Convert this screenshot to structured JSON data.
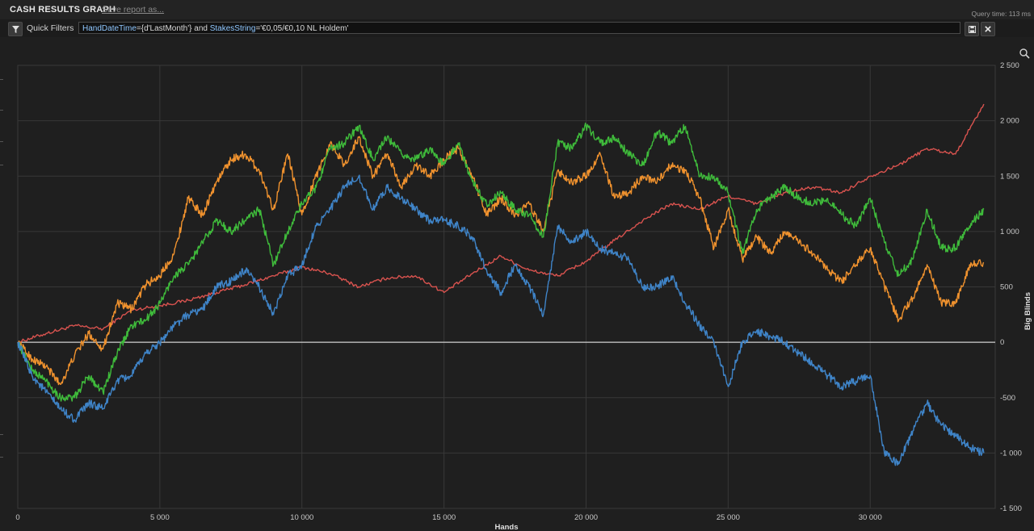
{
  "header": {
    "title": "CASH RESULTS GRAPH",
    "save_link": "Save report as...",
    "query_time": "Query time: 113 ms"
  },
  "filters": {
    "quick_filters_label": "Quick Filters",
    "query_key1": "HandDateTime",
    "query_val1": "={d'LastMonth'} and ",
    "query_key2": "StakesString",
    "query_val2": "='€0,05/€0,10 NL Holdem'",
    "save_icon": "save-icon",
    "clear_icon": "close-icon"
  },
  "chart_data": {
    "type": "line",
    "title": "",
    "xlabel": "Hands",
    "ylabel": "Big Blinds",
    "xlim": [
      0,
      34400
    ],
    "ylim": [
      -1500,
      2500
    ],
    "xticks": [
      0,
      5000,
      10000,
      15000,
      20000,
      25000,
      30000
    ],
    "xtick_labels": [
      "0",
      "5 000",
      "10 000",
      "15 000",
      "20 000",
      "25 000",
      "30 000"
    ],
    "yticks": [
      -1500,
      -1000,
      -500,
      0,
      500,
      1000,
      1500,
      2000,
      2500
    ],
    "ytick_labels": [
      "-1 500",
      "-1 000",
      "-500",
      "0",
      "500",
      "1 000",
      "1 500",
      "2 000",
      "2 500"
    ],
    "grid": true,
    "zero_line_color": "#d0d0d0",
    "series": [
      {
        "color": "#d9534f",
        "x": [
          0,
          1000,
          2000,
          3000,
          4000,
          5000,
          6000,
          7000,
          8000,
          9000,
          10000,
          11000,
          12000,
          13000,
          14000,
          15000,
          16000,
          17000,
          18000,
          19000,
          20000,
          21000,
          22000,
          23000,
          24000,
          25000,
          26000,
          27000,
          28000,
          29000,
          30000,
          31000,
          32000,
          33000,
          34000
        ],
        "y": [
          0,
          80,
          150,
          120,
          290,
          330,
          380,
          450,
          520,
          600,
          680,
          620,
          500,
          580,
          600,
          450,
          620,
          780,
          650,
          600,
          730,
          920,
          1100,
          1250,
          1200,
          1320,
          1250,
          1350,
          1400,
          1350,
          1500,
          1600,
          1750,
          1700,
          2150
        ]
      },
      {
        "color": "#f0922e",
        "x": [
          0,
          500,
          1000,
          1500,
          2000,
          2500,
          3000,
          3500,
          4000,
          4500,
          5000,
          5500,
          6000,
          6500,
          7000,
          7500,
          8000,
          8500,
          9000,
          9500,
          10000,
          10500,
          11000,
          11500,
          12000,
          12500,
          13000,
          13500,
          14000,
          14500,
          15000,
          15500,
          16000,
          16500,
          17000,
          17500,
          18000,
          18500,
          19000,
          19500,
          20000,
          20500,
          21000,
          21500,
          22000,
          22500,
          23000,
          23500,
          24000,
          24500,
          25000,
          25500,
          26000,
          26500,
          27000,
          27500,
          28000,
          28500,
          29000,
          29500,
          30000,
          30500,
          31000,
          31500,
          32000,
          32500,
          33000,
          33500,
          34000
        ],
        "y": [
          0,
          -150,
          -220,
          -380,
          -120,
          80,
          -60,
          350,
          300,
          520,
          600,
          800,
          1300,
          1150,
          1450,
          1650,
          1700,
          1550,
          1200,
          1700,
          1150,
          1500,
          1800,
          1600,
          1850,
          1500,
          1700,
          1400,
          1600,
          1500,
          1650,
          1750,
          1500,
          1150,
          1300,
          1150,
          1250,
          1000,
          1550,
          1450,
          1500,
          1700,
          1300,
          1350,
          1500,
          1450,
          1600,
          1550,
          1300,
          850,
          1200,
          750,
          950,
          800,
          1000,
          900,
          800,
          650,
          550,
          700,
          850,
          500,
          200,
          400,
          700,
          350,
          350,
          700,
          720
        ]
      },
      {
        "color": "#3fbb3b",
        "x": [
          0,
          500,
          1000,
          1500,
          2000,
          2500,
          3000,
          3500,
          4000,
          4500,
          5000,
          5500,
          6000,
          6500,
          7000,
          7500,
          8000,
          8500,
          9000,
          9500,
          10000,
          10500,
          11000,
          11500,
          12000,
          12500,
          13000,
          13500,
          14000,
          14500,
          15000,
          15500,
          16000,
          16500,
          17000,
          17500,
          18000,
          18500,
          19000,
          19500,
          20000,
          20500,
          21000,
          21500,
          22000,
          22500,
          23000,
          23500,
          24000,
          24500,
          25000,
          25500,
          26000,
          26500,
          27000,
          27500,
          28000,
          28500,
          29000,
          29500,
          30000,
          30500,
          31000,
          31500,
          32000,
          32500,
          33000,
          33500,
          34000
        ],
        "y": [
          0,
          -250,
          -350,
          -500,
          -500,
          -300,
          -450,
          -100,
          150,
          200,
          350,
          600,
          700,
          900,
          1100,
          1000,
          1100,
          1200,
          700,
          1000,
          1250,
          1400,
          1750,
          1800,
          1950,
          1650,
          1850,
          1700,
          1650,
          1750,
          1600,
          1800,
          1450,
          1250,
          1350,
          1200,
          1150,
          950,
          1800,
          1750,
          1950,
          1800,
          1850,
          1700,
          1600,
          1900,
          1800,
          1950,
          1500,
          1500,
          1350,
          800,
          1200,
          1300,
          1400,
          1300,
          1250,
          1300,
          1150,
          1050,
          1300,
          900,
          600,
          750,
          1200,
          850,
          850,
          1050,
          1200
        ]
      },
      {
        "color": "#3f84c8",
        "x": [
          0,
          500,
          1000,
          1500,
          2000,
          2500,
          3000,
          3500,
          4000,
          4500,
          5000,
          5500,
          6000,
          6500,
          7000,
          7500,
          8000,
          8500,
          9000,
          9500,
          10000,
          10500,
          11000,
          11500,
          12000,
          12500,
          13000,
          13500,
          14000,
          14500,
          15000,
          15500,
          16000,
          16500,
          17000,
          17500,
          18000,
          18500,
          19000,
          19500,
          20000,
          20500,
          21000,
          21500,
          22000,
          22500,
          23000,
          23500,
          24000,
          24500,
          25000,
          25500,
          26000,
          26500,
          27000,
          27500,
          28000,
          28500,
          29000,
          29500,
          30000,
          30500,
          31000,
          31500,
          32000,
          32500,
          33000,
          33500,
          34000
        ],
        "y": [
          0,
          -300,
          -450,
          -600,
          -700,
          -550,
          -600,
          -350,
          -300,
          -100,
          0,
          150,
          250,
          300,
          500,
          550,
          650,
          500,
          250,
          600,
          700,
          1050,
          1200,
          1400,
          1500,
          1200,
          1400,
          1300,
          1200,
          1100,
          1100,
          1050,
          950,
          650,
          450,
          700,
          500,
          250,
          1050,
          900,
          1000,
          850,
          800,
          750,
          500,
          500,
          600,
          350,
          150,
          0,
          -400,
          0,
          100,
          50,
          0,
          -100,
          -200,
          -300,
          -400,
          -350,
          -300,
          -1000,
          -1100,
          -800,
          -550,
          -750,
          -850,
          -950,
          -1000
        ]
      }
    ]
  }
}
